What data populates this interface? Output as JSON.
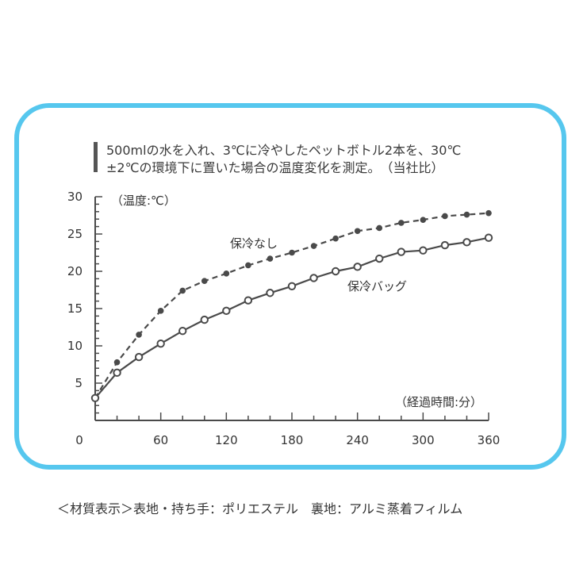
{
  "note": {
    "line1": "500mlの水を入れ、3℃に冷やしたペットボトル2本を、30℃",
    "line2": "±2℃の環境下に置いた場合の温度変化を測定。　（当社比）"
  },
  "footer": "＜材質表示＞表地・持ち手：ポリエステル　裏地：アルミ蒸着フィルム",
  "chart_data": {
    "type": "line",
    "ylabel": "（温度:℃）",
    "xlabel": "（経過時間:分）",
    "xlim": [
      0,
      360
    ],
    "ylim": [
      0,
      30
    ],
    "x_ticks": [
      "0",
      "60",
      "120",
      "180",
      "240",
      "300",
      "360"
    ],
    "y_ticks": [
      "5",
      "10",
      "15",
      "20",
      "25",
      "30"
    ],
    "grid": false,
    "x": [
      0,
      20,
      40,
      60,
      80,
      100,
      120,
      140,
      160,
      180,
      200,
      220,
      240,
      260,
      280,
      300,
      320,
      340,
      360
    ],
    "series": [
      {
        "name": "保冷なし",
        "style": "dashed",
        "marker": "filled",
        "values": [
          3.0,
          7.8,
          11.5,
          14.7,
          17.4,
          18.7,
          19.7,
          20.8,
          21.7,
          22.5,
          23.4,
          24.4,
          25.4,
          25.8,
          26.5,
          26.9,
          27.4,
          27.6,
          27.8
        ]
      },
      {
        "name": "保冷バッグ",
        "style": "solid",
        "marker": "open",
        "values": [
          3.0,
          6.4,
          8.5,
          10.3,
          12.0,
          13.5,
          14.7,
          16.1,
          17.1,
          18.0,
          19.1,
          20.0,
          20.6,
          21.7,
          22.6,
          22.8,
          23.5,
          23.9,
          24.5
        ]
      }
    ],
    "colors": {
      "line": "#4a4a4a",
      "frame": "#56c7ee"
    }
  }
}
